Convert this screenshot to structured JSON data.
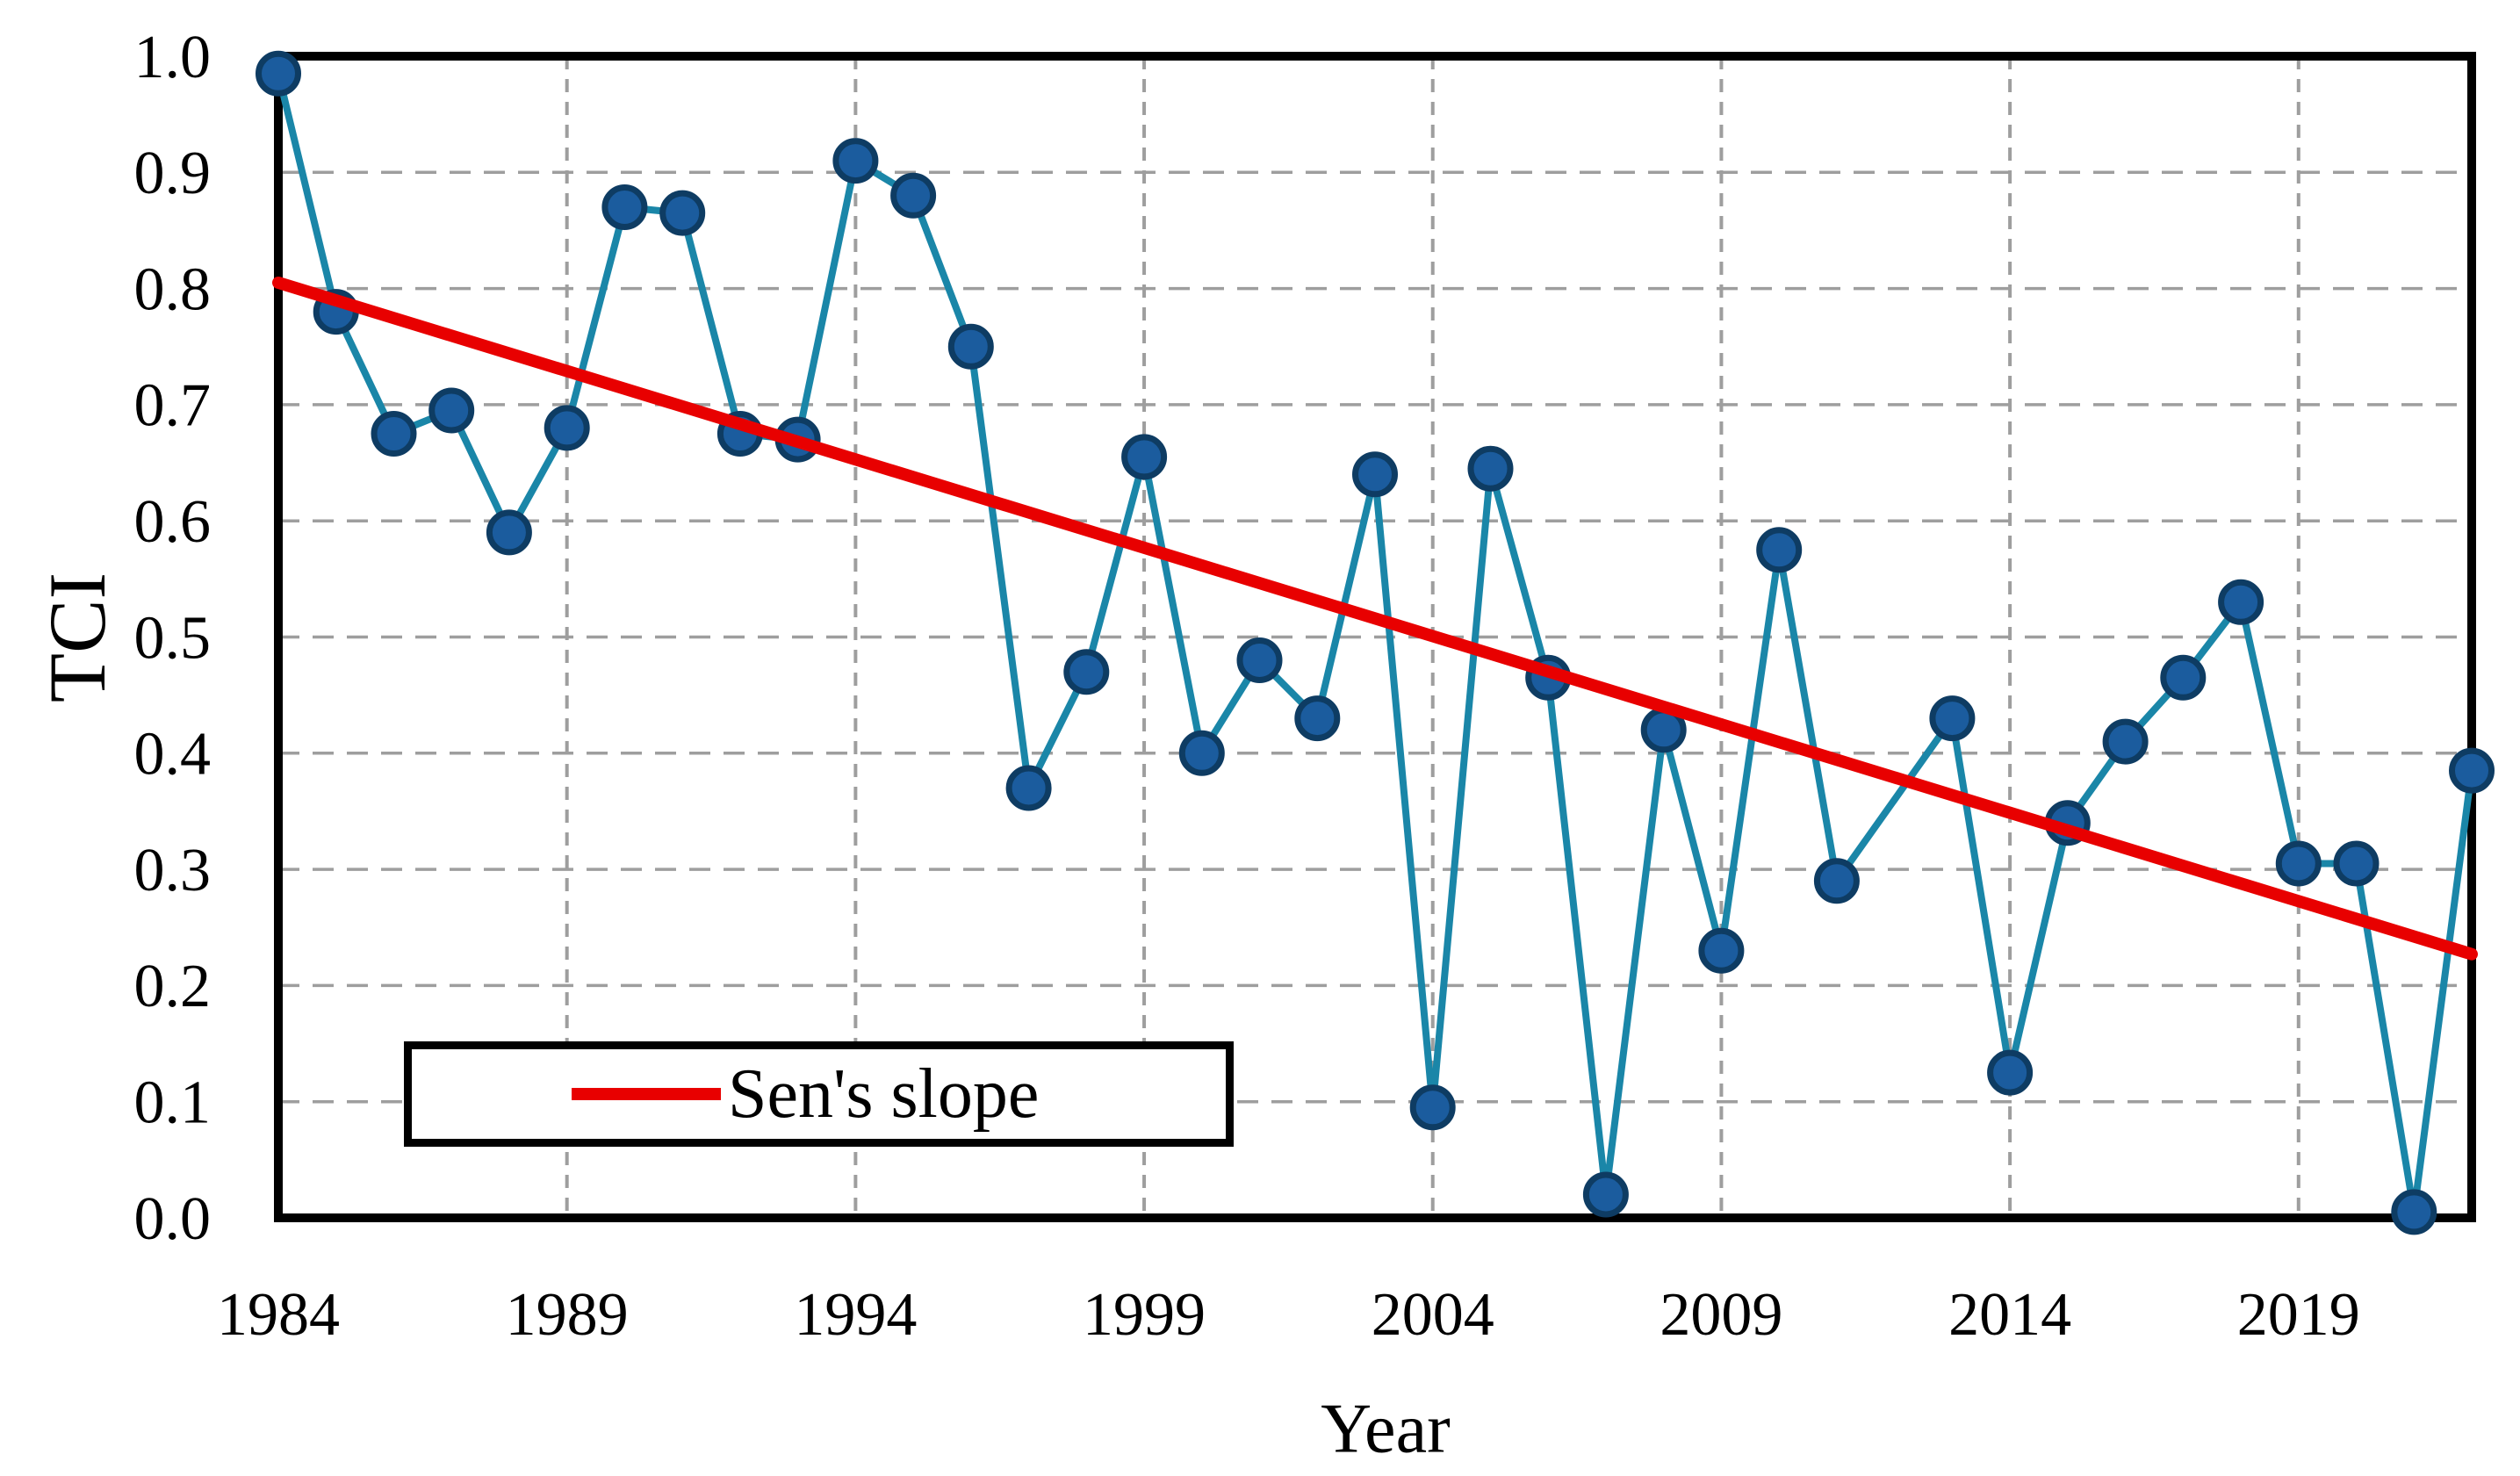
{
  "figure": {
    "background": "#ffffff"
  },
  "chart_data": {
    "type": "line",
    "title": "",
    "xlabel": "Year",
    "ylabel": "TCI",
    "xlim": [
      1984,
      2022
    ],
    "ylim": [
      0.0,
      1.0
    ],
    "x_ticks": [
      1984,
      1989,
      1994,
      1999,
      2004,
      2009,
      2014,
      2019
    ],
    "y_ticks": [
      1.0,
      0.9,
      0.8,
      0.7,
      0.6,
      0.5,
      0.4,
      0.3,
      0.2,
      0.1,
      0.0
    ],
    "grid_x": [
      1989,
      1994,
      1999,
      2004,
      2009,
      2014,
      2019
    ],
    "grid_y": [
      0.1,
      0.2,
      0.3,
      0.4,
      0.5,
      0.6,
      0.7,
      0.8,
      0.9
    ],
    "grid_on": true,
    "legend_position": "bottom-left",
    "series": [
      {
        "name": "TCI",
        "points": [
          [
            1984,
            0.985
          ],
          [
            1985,
            0.78
          ],
          [
            1986,
            0.675
          ],
          [
            1987,
            0.695
          ],
          [
            1988,
            0.59
          ],
          [
            1989,
            0.68
          ],
          [
            1990,
            0.87
          ],
          [
            1991,
            0.865
          ],
          [
            1992,
            0.675
          ],
          [
            1993,
            0.67
          ],
          [
            1994,
            0.91
          ],
          [
            1995,
            0.88
          ],
          [
            1996,
            0.75
          ],
          [
            1997,
            0.37
          ],
          [
            1998,
            0.47
          ],
          [
            1999,
            0.655
          ],
          [
            2000,
            0.4
          ],
          [
            2001,
            0.48
          ],
          [
            2002,
            0.43
          ],
          [
            2003,
            0.64
          ],
          [
            2004,
            0.095
          ],
          [
            2005,
            0.645
          ],
          [
            2006,
            0.465
          ],
          [
            2007,
            0.02
          ],
          [
            2008,
            0.42
          ],
          [
            2009,
            0.23
          ],
          [
            2010,
            0.575
          ],
          [
            2011,
            0.29
          ],
          [
            2013,
            0.43
          ],
          [
            2014,
            0.125
          ],
          [
            2015,
            0.34
          ],
          [
            2016,
            0.41
          ],
          [
            2017,
            0.465
          ],
          [
            2018,
            0.53
          ],
          [
            2019,
            0.305
          ],
          [
            2020,
            0.305
          ],
          [
            2021,
            0.005
          ],
          [
            2022,
            0.385
          ]
        ]
      }
    ],
    "trend_line": {
      "name": "Sen's slope",
      "x1": 1984,
      "y1": 0.805,
      "x2": 2022,
      "y2": 0.227
    },
    "legend": {
      "label": "Sen's slope"
    },
    "colors": {
      "series_line": "#1A86A8",
      "marker_fill": "#1B5C9E",
      "marker_border": "#0E3C63",
      "trend": "#E80000",
      "grid": "#9E9E9E",
      "axis": "#000000",
      "text": "#000000"
    }
  }
}
